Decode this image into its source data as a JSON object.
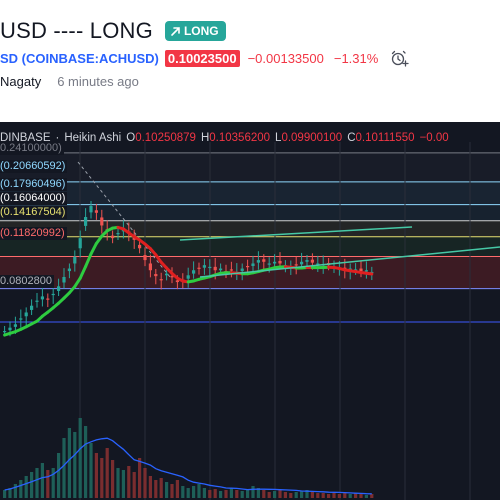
{
  "header": {
    "title": "USD ---- LONG",
    "badge_label": "LONG",
    "symbol": "SD (COINBASE:ACHUSD)",
    "price": "0.10023500",
    "change": "−0.00133500",
    "change_pct": "−1.31%",
    "author": "Nagaty",
    "time_ago": "6 minutes ago",
    "alarm_icon": "alarm-plus-icon"
  },
  "chart": {
    "exchange": "DINBASE",
    "dot": "·",
    "style": "Heikin Ashi",
    "o_label": "O",
    "o_value": "0.10250879",
    "h_label": "H",
    "h_value": "0.10356200",
    "l_label": "L",
    "l_value": "0.09900100",
    "c_label": "C",
    "c_value": "0.10111550",
    "extra": "−0.00",
    "levels": [
      {
        "text": "0.24100000)",
        "color": "#787b86"
      },
      {
        "text": "(0.20660592)",
        "color": "#8fd8ff"
      },
      {
        "text": "(0.17960496)",
        "color": "#8fd8ff"
      },
      {
        "text": "(0.16064000)",
        "color": "#ffffff"
      },
      {
        "text": "(0.14167504)",
        "color": "#e6e070"
      },
      {
        "text": "(0.11820992)",
        "color": "#ff6b6b"
      },
      {
        "text": "0.0802800",
        "color": "#b0b3bb"
      }
    ],
    "colors": {
      "background": "#131722",
      "up": "#26a69a",
      "down": "#ef5350",
      "volume_up": "#1e5f58",
      "volume_down": "#7a2d2f",
      "ma_green": "#2ecc40",
      "ma_red": "#e02020",
      "channel": "#46c9a6",
      "volume_ma": "#2962ff"
    }
  },
  "chart_data": {
    "type": "candlestick",
    "symbol": "COINBASE:ACHUSD",
    "style": "Heikin Ashi",
    "price_levels": [
      0.241,
      0.20660592,
      0.17960496,
      0.16064,
      0.14167504,
      0.11820992,
      0.08028
    ],
    "heikin_ashi_closes": [
      0.03,
      0.034,
      0.038,
      0.045,
      0.052,
      0.06,
      0.066,
      0.071,
      0.068,
      0.074,
      0.083,
      0.094,
      0.104,
      0.118,
      0.14,
      0.165,
      0.178,
      0.17,
      0.155,
      0.148,
      0.14,
      0.146,
      0.152,
      0.146,
      0.138,
      0.128,
      0.114,
      0.102,
      0.095,
      0.09,
      0.098,
      0.094,
      0.088,
      0.09,
      0.096,
      0.102,
      0.104,
      0.108,
      0.106,
      0.102,
      0.104,
      0.1,
      0.102,
      0.1,
      0.104,
      0.106,
      0.11,
      0.114,
      0.112,
      0.11,
      0.112,
      0.11,
      0.108,
      0.106,
      0.108,
      0.112,
      0.114,
      0.111,
      0.11,
      0.109,
      0.108,
      0.106,
      0.104,
      0.102,
      0.104,
      0.103,
      0.101,
      0.102,
      0.1
    ]
  }
}
